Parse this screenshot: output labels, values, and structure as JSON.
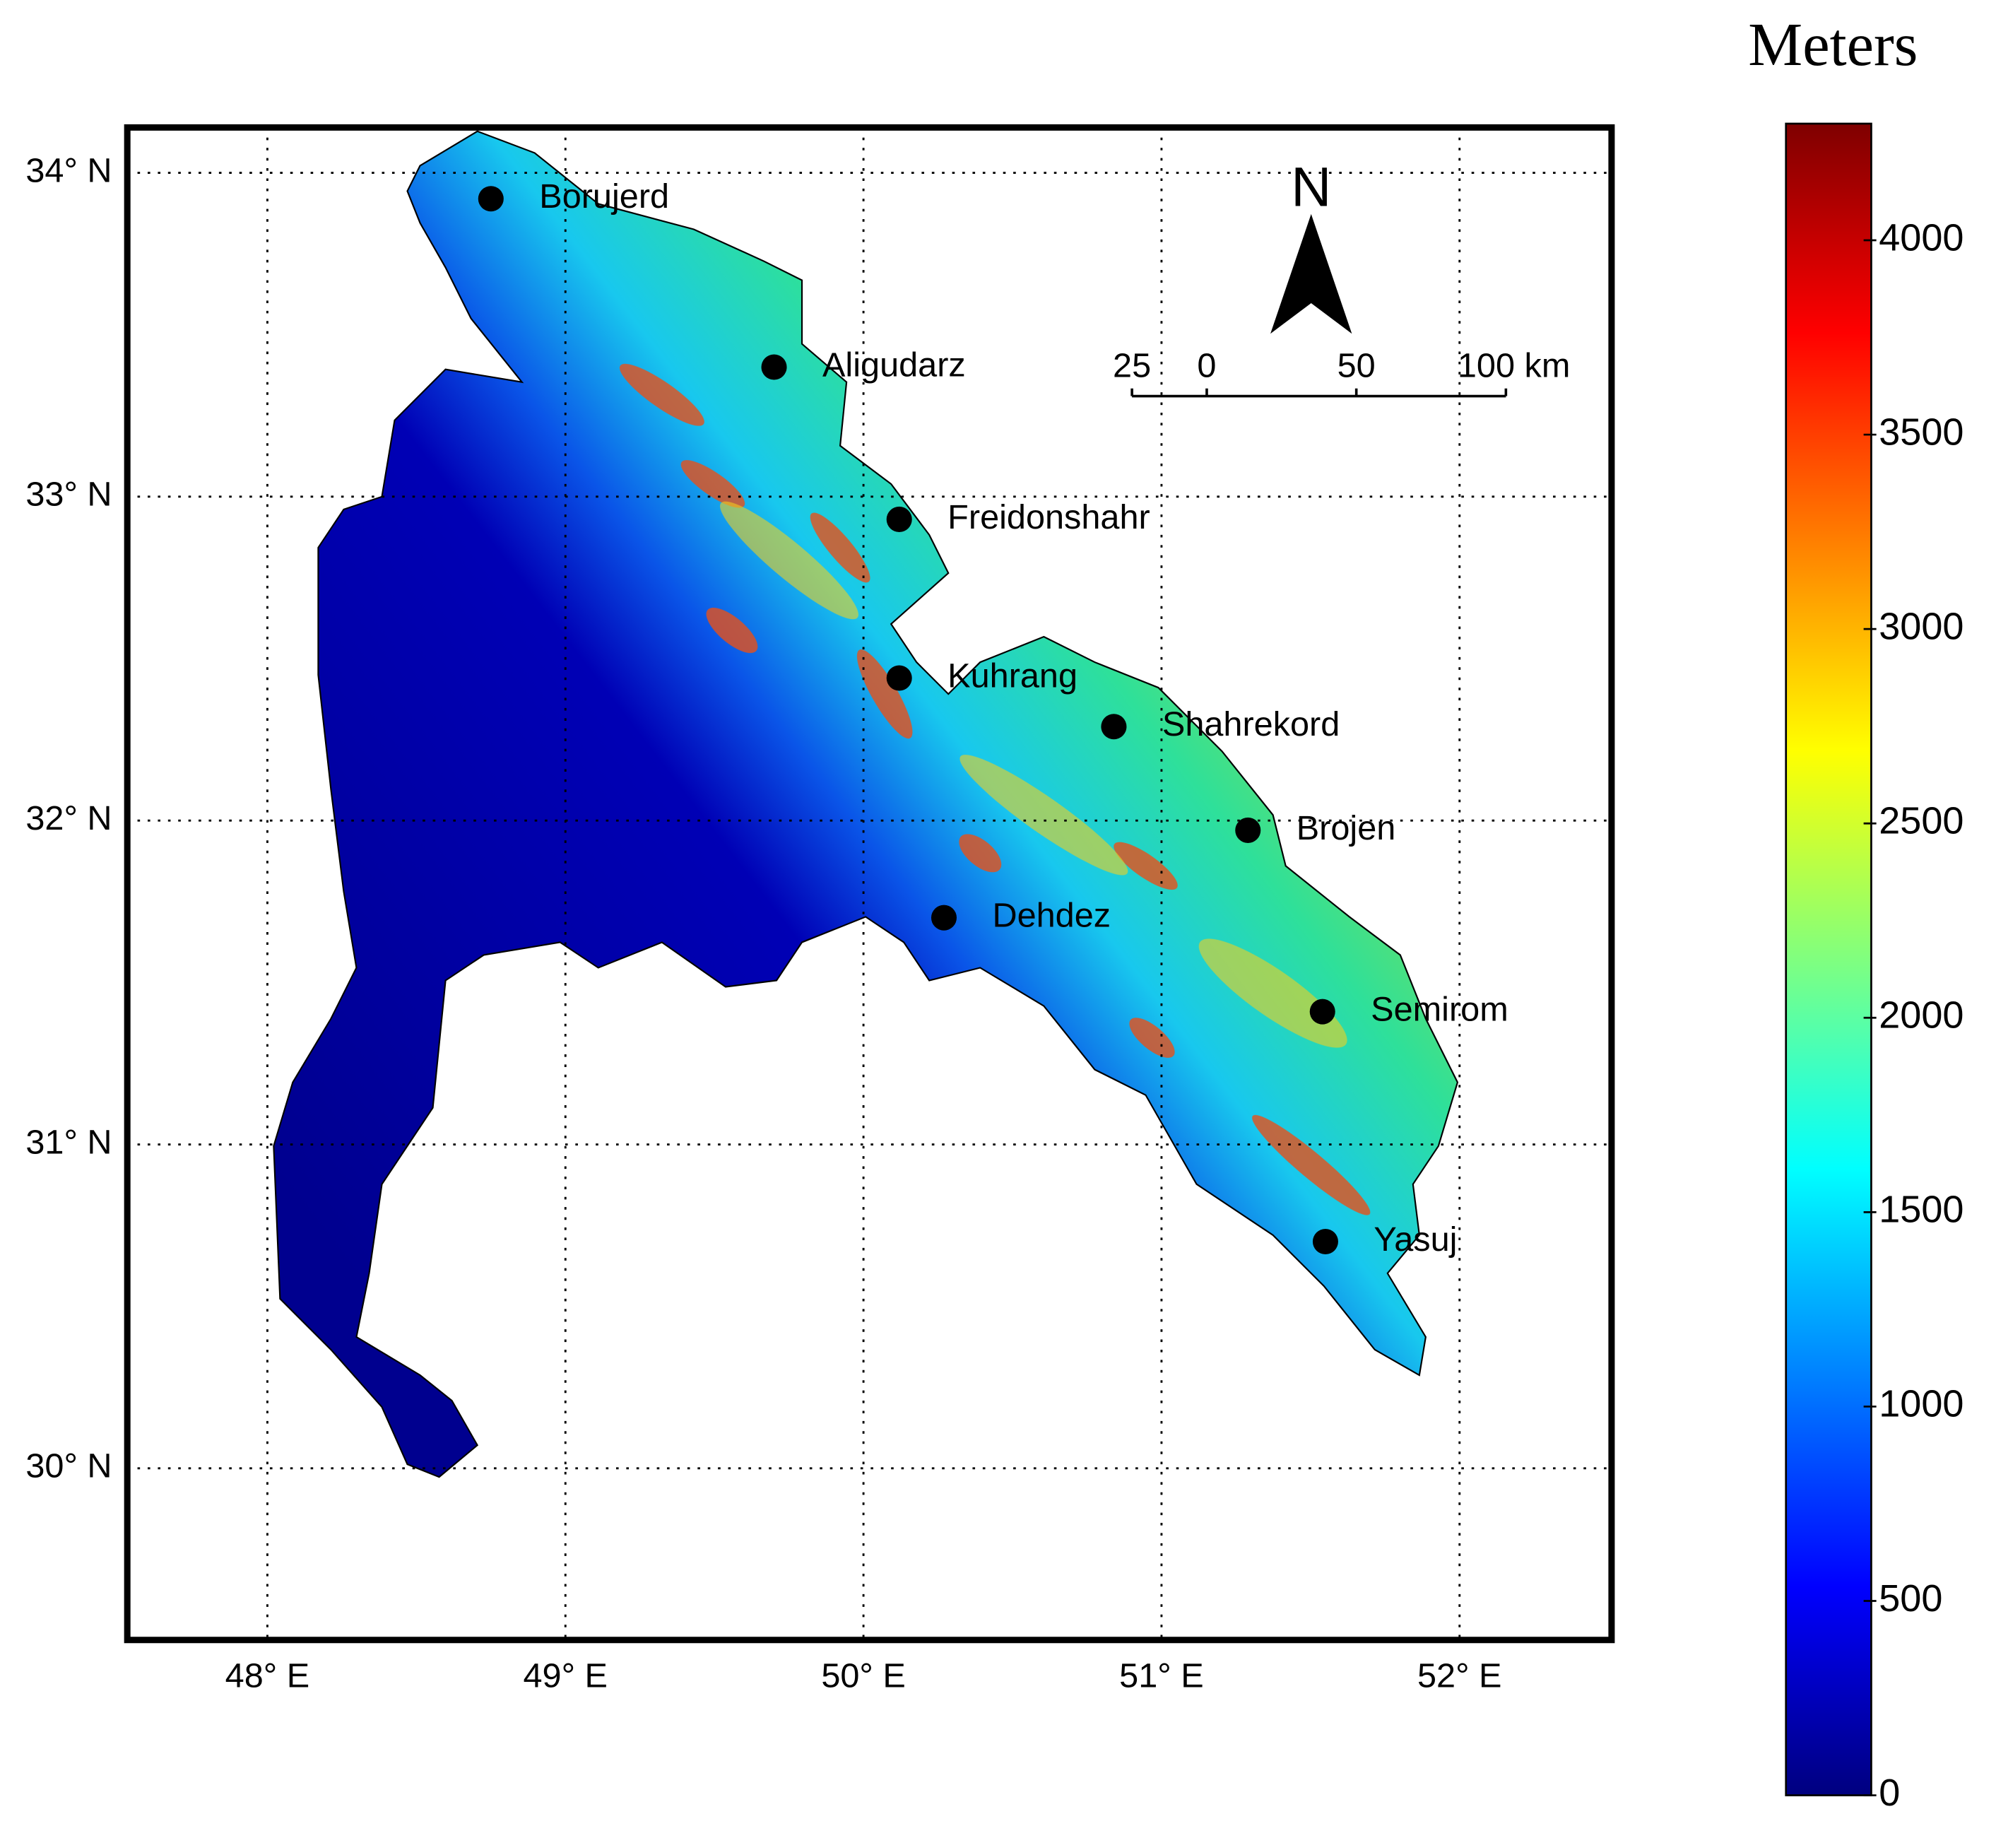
{
  "map": {
    "xlim": [
      47.53,
      52.51
    ],
    "ylim": [
      29.47,
      34.14
    ],
    "xticks": [
      {
        "value": 48,
        "label": "48° E"
      },
      {
        "value": 49,
        "label": "49° E"
      },
      {
        "value": 50,
        "label": "50° E"
      },
      {
        "value": 51,
        "label": "51° E"
      },
      {
        "value": 52,
        "label": "52° E"
      }
    ],
    "yticks": [
      {
        "value": 30,
        "label": "30° N"
      },
      {
        "value": 31,
        "label": "31° N"
      },
      {
        "value": 32,
        "label": "32° N"
      },
      {
        "value": 33,
        "label": "33° N"
      },
      {
        "value": 34,
        "label": "34° N"
      }
    ],
    "grid": true,
    "city_color": "#000000",
    "cities": [
      {
        "name": "Borujerd",
        "lon": 48.75,
        "lat": 33.92
      },
      {
        "name": "Aligudarz",
        "lon": 49.7,
        "lat": 33.4
      },
      {
        "name": "Freidonshahr",
        "lon": 50.12,
        "lat": 32.93
      },
      {
        "name": "Kuhrang",
        "lon": 50.12,
        "lat": 32.44
      },
      {
        "name": "Shahrekord",
        "lon": 50.84,
        "lat": 32.29
      },
      {
        "name": "Brojen",
        "lon": 51.29,
        "lat": 31.97
      },
      {
        "name": "Dehdez",
        "lon": 50.27,
        "lat": 31.7
      },
      {
        "name": "Semirom",
        "lon": 51.54,
        "lat": 31.41
      },
      {
        "name": "Yasuj",
        "lon": 51.55,
        "lat": 30.7
      }
    ],
    "north_label": "N",
    "scale_bar": {
      "ticks": [
        {
          "value": -25,
          "label": "25"
        },
        0,
        50,
        {
          "value": 100,
          "label": "100 km"
        }
      ]
    }
  },
  "colorbar": {
    "title": "Meters",
    "colormap": "jet",
    "lim": [
      0,
      4300
    ],
    "ticks": [
      0,
      500,
      1000,
      1500,
      2000,
      2500,
      3000,
      3500,
      4000
    ]
  }
}
